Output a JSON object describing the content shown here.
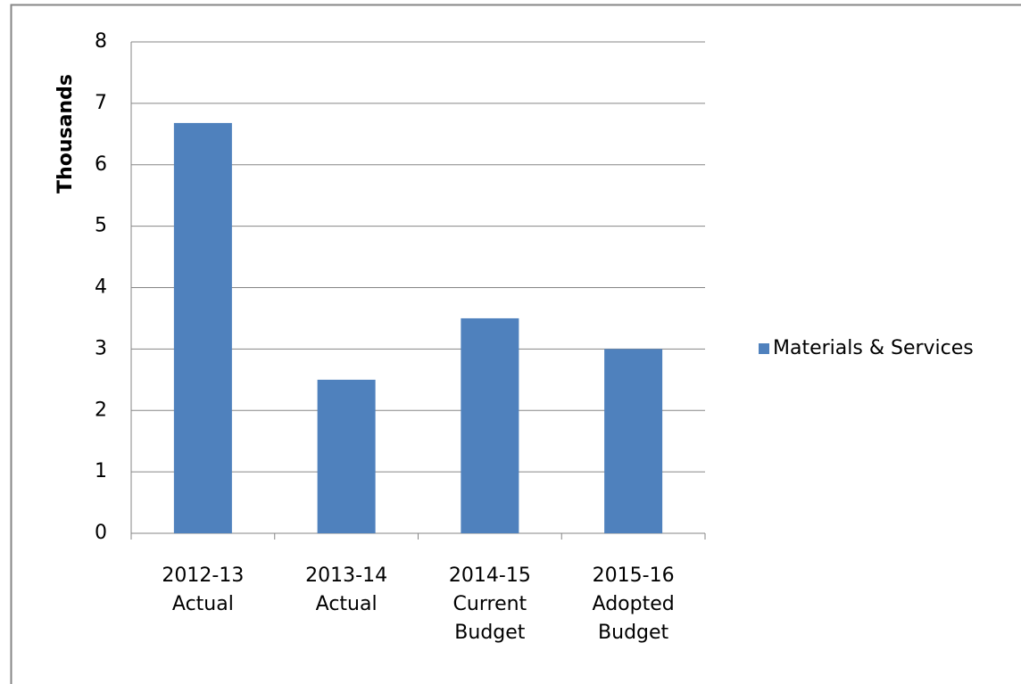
{
  "chart_data": {
    "type": "bar",
    "y_label": "Thousands",
    "categories": [
      "2012-13 Actual",
      "2013-14 Actual",
      "2014-15 Current Budget",
      "2015-16 Adopted Budget"
    ],
    "series": [
      {
        "name": "Materials & Services",
        "color": "#4f81bd",
        "values": [
          6.68,
          2.5,
          3.5,
          3.0
        ]
      }
    ],
    "ylim": [
      0,
      8
    ],
    "yticks": [
      0,
      1,
      2,
      3,
      4,
      5,
      6,
      7,
      8
    ],
    "grid": true,
    "legend": "right"
  }
}
